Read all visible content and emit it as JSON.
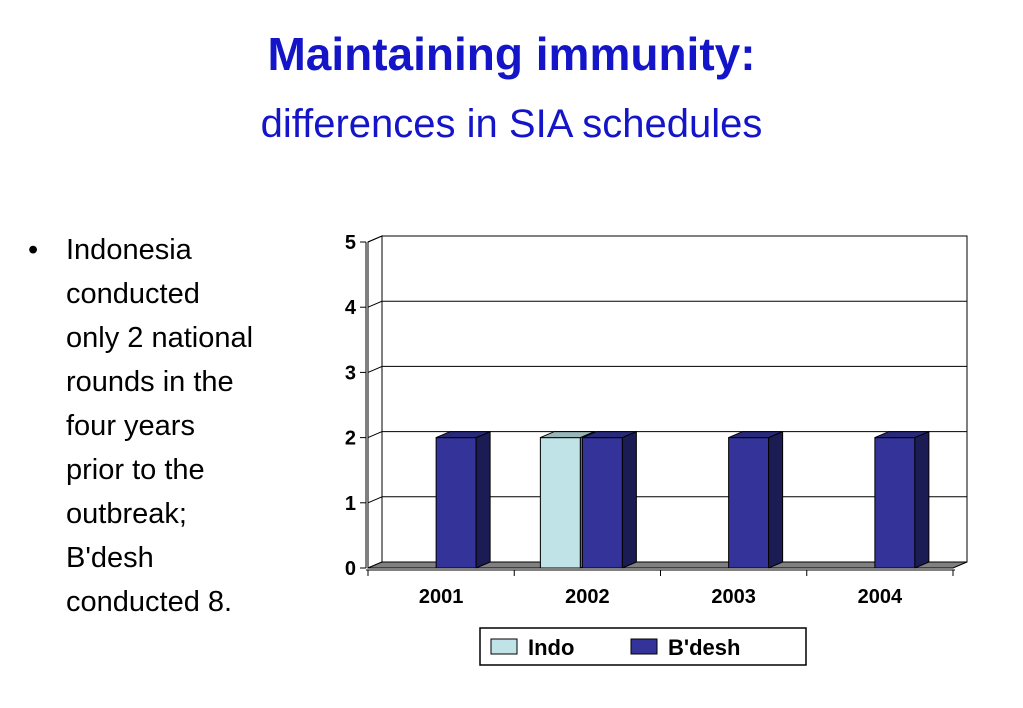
{
  "slide": {
    "title": "Maintaining immunity:",
    "subtitle": "differences in SIA schedules",
    "bullet_symbol": "•",
    "bullet_lines": [
      "Indonesia",
      "conducted",
      "only 2 national",
      "rounds in the",
      "four years",
      "prior to the",
      "outbreak;",
      "B'desh",
      "conducted 8."
    ]
  },
  "colors": {
    "title": "#1414c8",
    "indo": "#bfe3e6",
    "bdesh": "#33339a",
    "floor": "#808080"
  },
  "chart_data": {
    "type": "bar",
    "categories": [
      "2001",
      "2002",
      "2003",
      "2004"
    ],
    "series": [
      {
        "name": "Indo",
        "values": [
          0,
          2,
          0,
          0
        ]
      },
      {
        "name": "B'desh",
        "values": [
          2,
          2,
          2,
          2
        ]
      }
    ],
    "ylim": [
      0,
      5
    ],
    "yticks": [
      "0",
      "1",
      "2",
      "3",
      "4",
      "5"
    ],
    "grid": true,
    "legend_position": "bottom",
    "style": "3d-bar"
  }
}
